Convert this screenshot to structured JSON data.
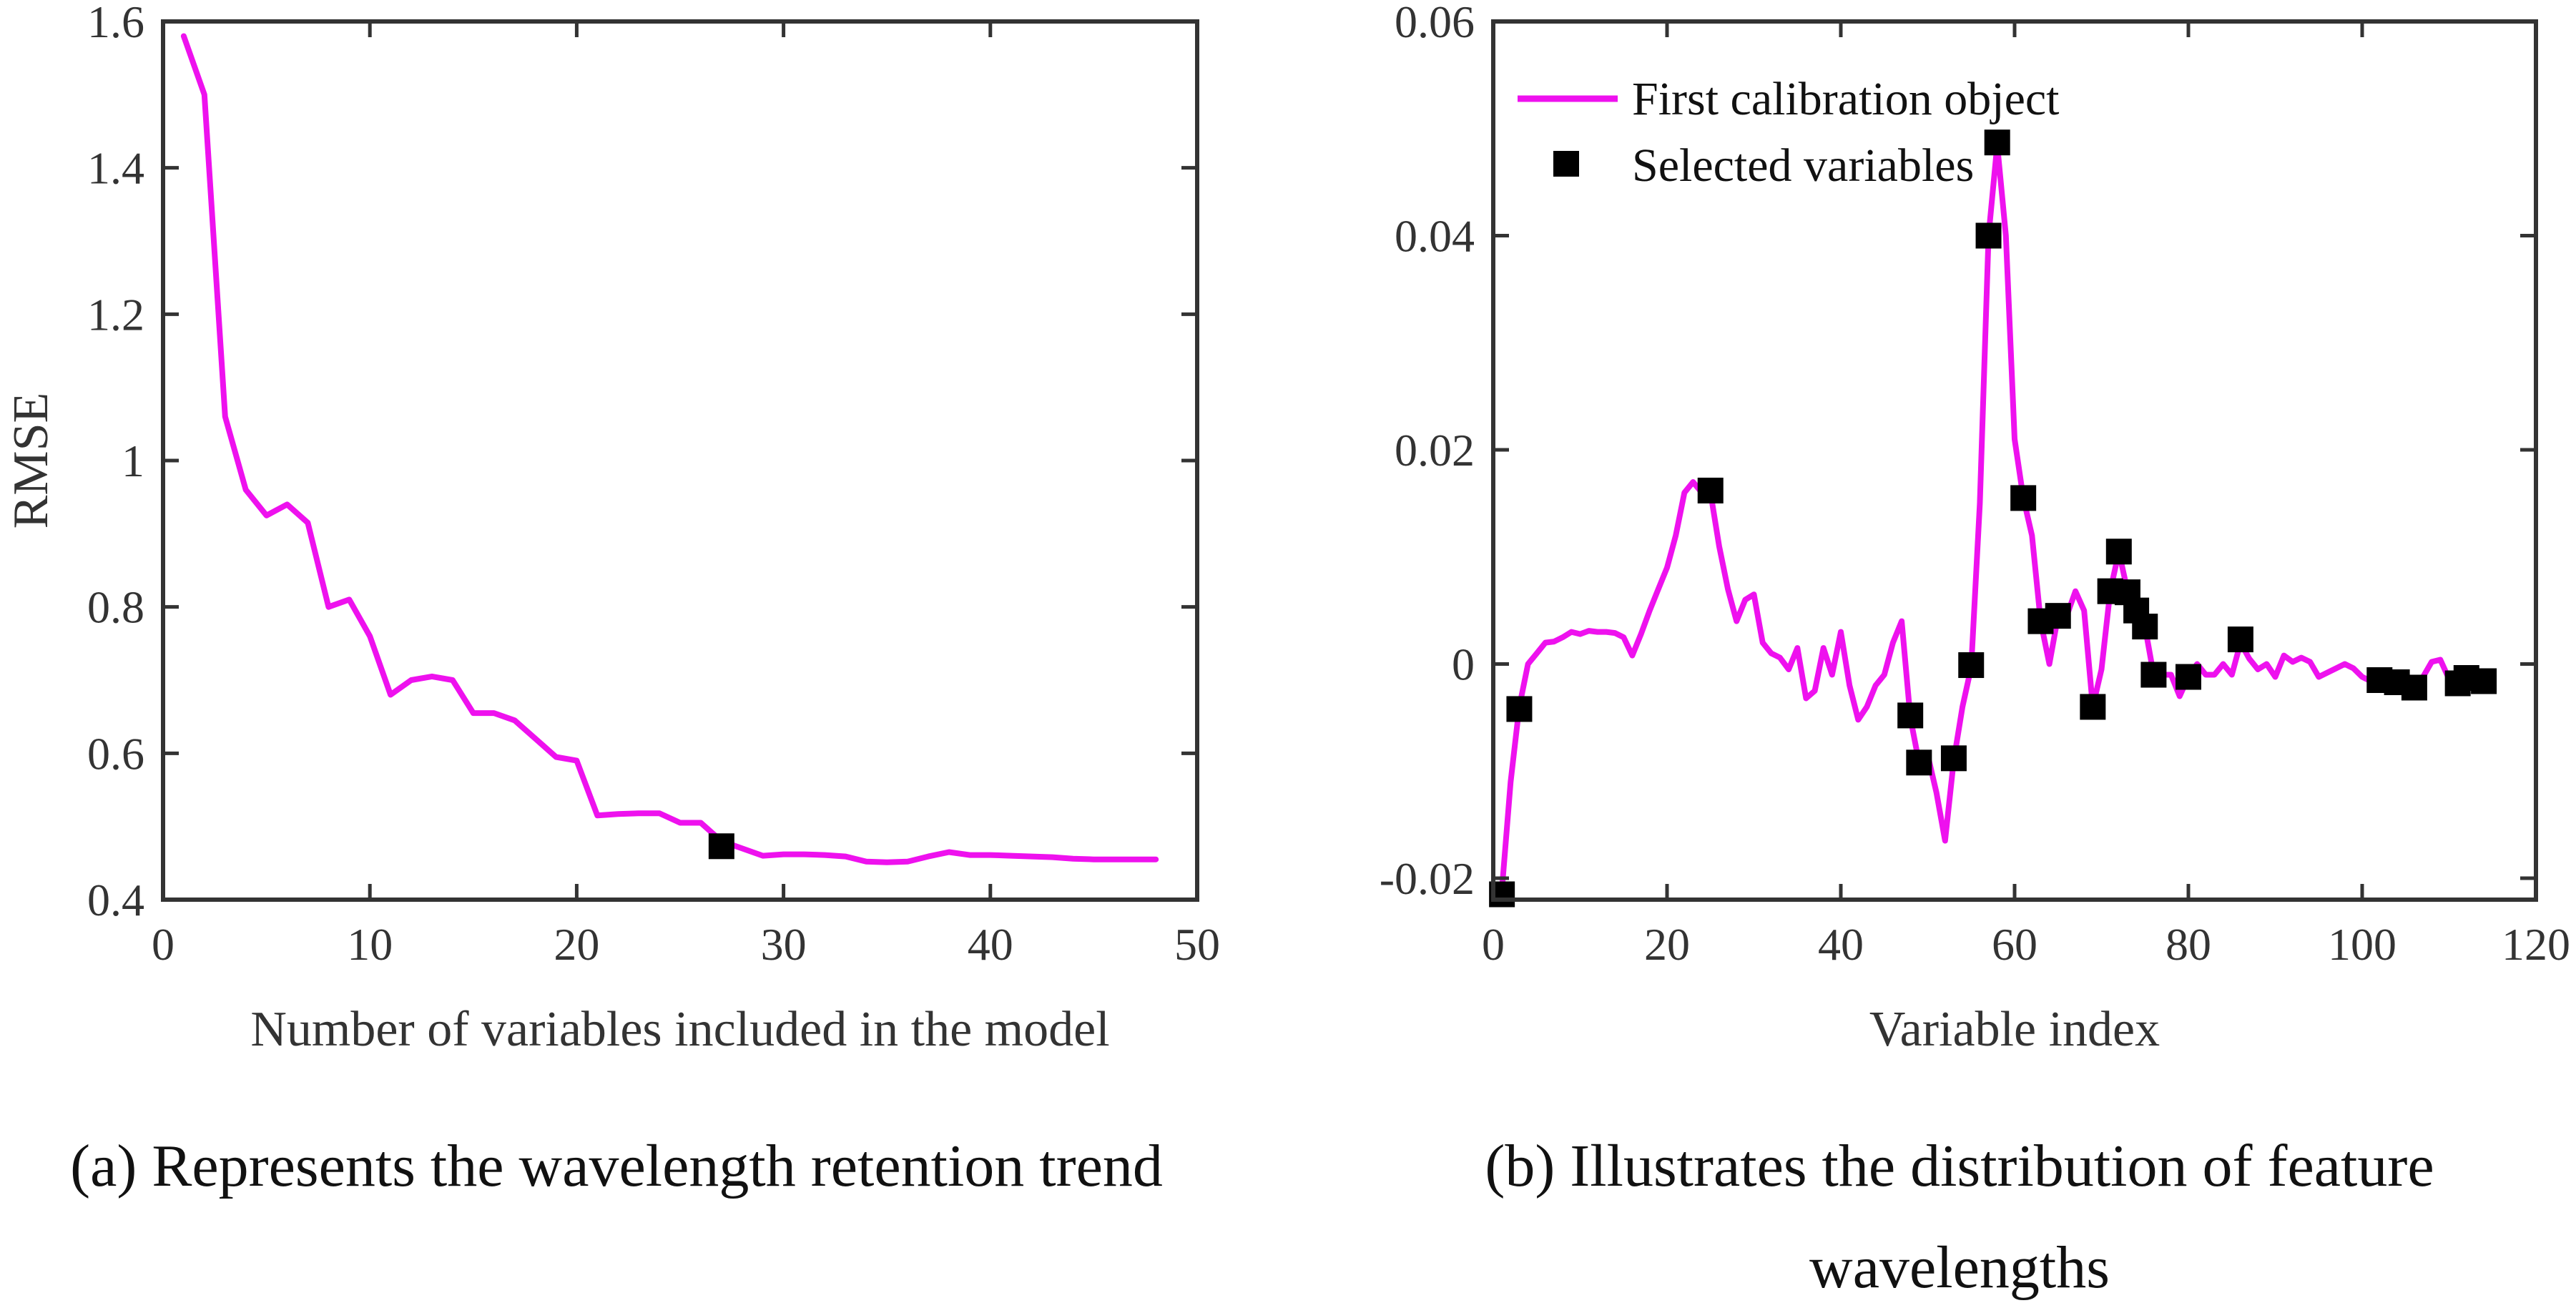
{
  "chart_data": [
    {
      "type": "line",
      "panel": "a",
      "caption": "(a) Represents the wavelength retention trend",
      "xlabel": "Number of variables included in the model",
      "ylabel": "RMSE",
      "xlim": [
        0,
        50
      ],
      "ylim": [
        0.4,
        1.6
      ],
      "xticks": [
        0,
        10,
        20,
        30,
        40,
        50
      ],
      "yticks": [
        0.4,
        0.6,
        0.8,
        1.0,
        1.2,
        1.4,
        1.6
      ],
      "xtick_labels": [
        "0",
        "10",
        "20",
        "30",
        "40",
        "50"
      ],
      "ytick_labels": [
        "0.4",
        "0.6",
        "0.8",
        "1",
        "1.2",
        "1.4",
        "1.6"
      ],
      "line_color": "#ee11ee",
      "marker_color": "#000000",
      "series": [
        {
          "name": "RMSE",
          "x": [
            1,
            2,
            3,
            4,
            5,
            6,
            7,
            8,
            9,
            10,
            11,
            12,
            13,
            14,
            15,
            16,
            17,
            18,
            19,
            20,
            21,
            22,
            23,
            24,
            25,
            26,
            27,
            28,
            29,
            30,
            31,
            32,
            33,
            34,
            35,
            36,
            37,
            38,
            39,
            40,
            41,
            42,
            43,
            44,
            45,
            46,
            47,
            48
          ],
          "y": [
            1.58,
            1.5,
            1.06,
            0.96,
            0.925,
            0.94,
            0.915,
            0.8,
            0.81,
            0.76,
            0.68,
            0.7,
            0.705,
            0.7,
            0.655,
            0.655,
            0.645,
            0.62,
            0.595,
            0.59,
            0.515,
            0.517,
            0.518,
            0.518,
            0.505,
            0.505,
            0.48,
            0.47,
            0.46,
            0.462,
            0.462,
            0.461,
            0.459,
            0.452,
            0.451,
            0.452,
            0.459,
            0.465,
            0.461,
            0.461,
            0.46,
            0.459,
            0.458,
            0.456,
            0.455,
            0.455,
            0.455,
            0.455
          ]
        }
      ],
      "highlight_point": {
        "x": 27,
        "y": 0.473
      }
    },
    {
      "type": "line",
      "panel": "b",
      "caption_lines": [
        "(b) Illustrates the distribution of feature",
        "wavelengths"
      ],
      "xlabel": "Variable index",
      "ylabel": "",
      "xlim": [
        0,
        120
      ],
      "ylim": [
        -0.022,
        0.06
      ],
      "xticks": [
        0,
        20,
        40,
        60,
        80,
        100,
        120
      ],
      "yticks": [
        -0.02,
        0,
        0.02,
        0.04,
        0.06
      ],
      "xtick_labels": [
        "0",
        "20",
        "40",
        "60",
        "80",
        "100",
        "120"
      ],
      "ytick_labels": [
        "-0.02",
        "0",
        "0.02",
        "0.04",
        "0.06"
      ],
      "legend": [
        "First calibration object",
        "Selected variables"
      ],
      "legend_position": "top-left",
      "line_color": "#ee11ee",
      "marker_color": "#000000",
      "series": [
        {
          "name": "First calibration object",
          "x": [
            1,
            2,
            3,
            4,
            5,
            6,
            7,
            8,
            9,
            10,
            11,
            12,
            13,
            14,
            15,
            16,
            17,
            18,
            19,
            20,
            21,
            22,
            23,
            24,
            25,
            26,
            27,
            28,
            29,
            30,
            31,
            32,
            33,
            34,
            35,
            36,
            37,
            38,
            39,
            40,
            41,
            42,
            43,
            44,
            45,
            46,
            47,
            48,
            49,
            50,
            51,
            52,
            53,
            54,
            55,
            56,
            57,
            58,
            59,
            60,
            61,
            62,
            63,
            64,
            65,
            66,
            67,
            68,
            69,
            70,
            71,
            72,
            73,
            74,
            75,
            76,
            77,
            78,
            79,
            80,
            81,
            82,
            83,
            84,
            85,
            86,
            87,
            88,
            89,
            90,
            91,
            92,
            93,
            94,
            95,
            96,
            97,
            98,
            99,
            100,
            101,
            102,
            103,
            104,
            105,
            106,
            107,
            108,
            109,
            110,
            111,
            112,
            113,
            114
          ],
          "y": [
            -0.021,
            -0.011,
            -0.004,
            0.0,
            0.001,
            0.002,
            0.0021,
            0.0025,
            0.003,
            0.0028,
            0.0031,
            0.003,
            0.003,
            0.0029,
            0.0025,
            0.0008,
            0.0028,
            0.005,
            0.007,
            0.009,
            0.012,
            0.016,
            0.017,
            0.016,
            0.016,
            0.011,
            0.007,
            0.004,
            0.006,
            0.0065,
            0.002,
            0.001,
            0.0006,
            -0.0005,
            0.0015,
            -0.0032,
            -0.0025,
            0.0015,
            -0.001,
            0.003,
            -0.002,
            -0.0052,
            -0.004,
            -0.002,
            -0.001,
            0.002,
            0.004,
            -0.005,
            -0.0092,
            -0.0085,
            -0.012,
            -0.0165,
            -0.009,
            -0.004,
            -0.0003,
            0.015,
            0.04,
            0.0485,
            0.04,
            0.021,
            0.0155,
            0.012,
            0.004,
            0.0,
            0.0045,
            0.0045,
            0.0068,
            0.005,
            -0.004,
            -0.0005,
            0.0068,
            0.0105,
            0.0068,
            0.005,
            0.0035,
            -0.001,
            -0.001,
            -0.001,
            -0.003,
            -0.0012,
            0.0,
            -0.001,
            -0.001,
            0.0,
            -0.001,
            0.002,
            0.0005,
            -0.0005,
            0.0,
            -0.0012,
            0.0008,
            0.0002,
            0.0006,
            0.0002,
            -0.0012,
            -0.0008,
            -0.0004,
            0.0,
            -0.0004,
            -0.0012,
            -0.0016,
            -0.0016,
            -0.0016,
            -0.0018,
            -0.0014,
            -0.0022,
            -0.0012,
            0.0002,
            0.0004,
            -0.0014,
            -0.0018,
            -0.0014,
            -0.0016,
            -0.0016
          ]
        },
        {
          "name": "Selected variables",
          "x": [
            1,
            3,
            25,
            48,
            49,
            53,
            55,
            57,
            58,
            61,
            63,
            65,
            69,
            71,
            72,
            73,
            74,
            75,
            76,
            80,
            86,
            102,
            104,
            106,
            111,
            112,
            114
          ],
          "y": [
            -0.0215,
            -0.0042,
            0.0162,
            -0.0048,
            -0.0092,
            -0.0088,
            -0.0001,
            0.04,
            0.0487,
            0.0155,
            0.004,
            0.0045,
            -0.004,
            0.0068,
            0.0105,
            0.0067,
            0.005,
            0.0035,
            -0.001,
            -0.0012,
            0.0023,
            -0.0015,
            -0.0017,
            -0.0022,
            -0.0018,
            -0.0013,
            -0.0016
          ]
        }
      ]
    }
  ]
}
